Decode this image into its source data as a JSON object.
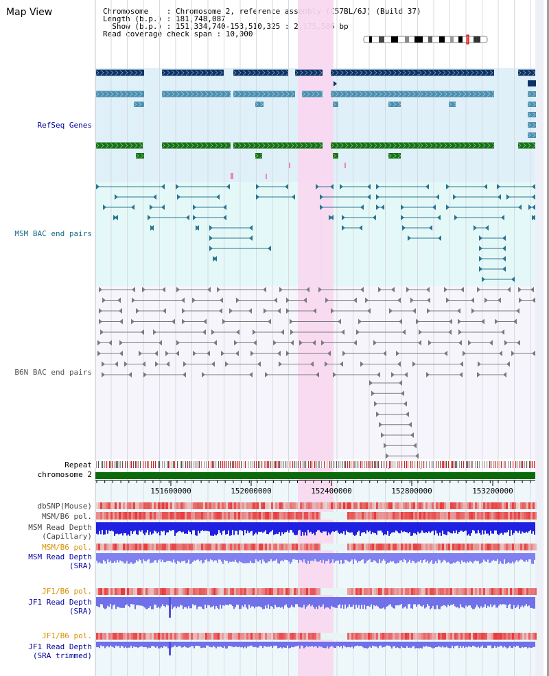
{
  "page": {
    "title": "Map View",
    "info": {
      "chromosome": "Chromosome    : Chromosome 2, reference assembly (C57BL/6J) (Build 37)",
      "length": "Length (b.p.) : 181,748,087",
      "show": "  Show (b.p.) : 151,334,740-153,510,325 : 2,175,586 bp",
      "coverage": "Read coverage check span : 10,000"
    }
  },
  "tracks": {
    "refseq": "RefSeq Genes",
    "msm_bac": "MSM BAC end pairs",
    "b6n_bac": "B6N BAC end pairs",
    "repeat": "Repeat",
    "chromosome": "chromosome 2",
    "dbsnp": "dbSNP(Mouse)",
    "msm_b6_pol": "MSM/B6 pol.",
    "msm_depth_cap_1": "MSM Read Depth",
    "msm_depth_cap_2": "(Capillary)",
    "msm_b6_pol_2": "MSM/B6 pol.",
    "msm_depth_sra_1": "MSM Read Depth",
    "msm_depth_sra_2": "(SRA)",
    "jf1_b6_pol": "JF1/B6 pol.",
    "jf1_depth_sra_1": "JF1 Read Depth",
    "jf1_depth_sra_2": "(SRA)",
    "jf1_b6_pol_2": "JF1/B6 pol.",
    "jf1_depth_trim_1": "JF1 Read Depth",
    "jf1_depth_trim_2": "(SRA trimmed)"
  },
  "axis": {
    "ticks": [
      "151600000",
      "152000000",
      "152400000",
      "152800000",
      "153200000"
    ]
  },
  "colors": {
    "refseq_bg": "#dff0f8",
    "msm_bg": "#e4f8f8",
    "b6n_bg": "#f5f5fb",
    "highlight": "#f8d8f0",
    "gene_dark": "#0b3366",
    "gene_mid": "#4a8fb0",
    "gene_green": "#157215",
    "msm_pair": "#2a7590",
    "b6n_pair": "#7a7a7a",
    "chromosome_bar": "#0b6b0b",
    "depth_blue": "#2020e0",
    "depth_light": "#8080f0",
    "pol_red": "#e84040",
    "label_blue": "#00009e",
    "label_orange": "#d89000"
  }
}
